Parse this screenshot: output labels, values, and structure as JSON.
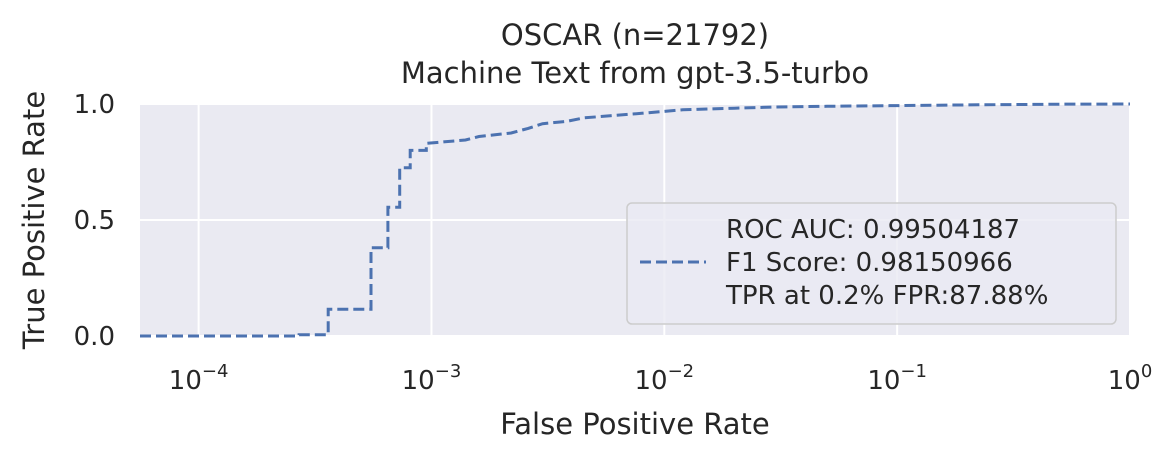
{
  "chart_data": {
    "type": "line",
    "title": "OSCAR (n=21792)",
    "subtitle": "Machine Text from gpt-3.5-turbo",
    "xlabel": "False Positive Rate",
    "ylabel": "True Positive Rate",
    "xscale": "log",
    "xlim": [
      5.6e-05,
      1.0
    ],
    "ylim": [
      0.0,
      1.0
    ],
    "grid": true,
    "legend_position": "lower-right",
    "x_ticks": [
      {
        "value": 0.0001,
        "base": "10",
        "exp": "−4"
      },
      {
        "value": 0.001,
        "base": "10",
        "exp": "−3"
      },
      {
        "value": 0.01,
        "base": "10",
        "exp": "−2"
      },
      {
        "value": 0.1,
        "base": "10",
        "exp": "−1"
      },
      {
        "value": 1,
        "base": "10",
        "exp": "0"
      }
    ],
    "y_ticks": [
      {
        "value": 0.0,
        "label": "0.0"
      },
      {
        "value": 0.5,
        "label": "0.5"
      },
      {
        "value": 1.0,
        "label": "1.0"
      }
    ],
    "series": [
      {
        "color": "#4c72b0",
        "linestyle": "dashed",
        "legend_lines": [
          "ROC AUC: 0.99504187",
          "F1 Score: 0.98150966",
          "TPR at 0.2% FPR:87.88%"
        ],
        "points": [
          [
            5.6e-05,
            0.0
          ],
          [
            0.00027,
            0.0
          ],
          [
            0.00027,
            0.005
          ],
          [
            0.00036,
            0.005
          ],
          [
            0.00036,
            0.115
          ],
          [
            0.00055,
            0.115
          ],
          [
            0.00055,
            0.38
          ],
          [
            0.00065,
            0.38
          ],
          [
            0.00065,
            0.555
          ],
          [
            0.00073,
            0.555
          ],
          [
            0.00073,
            0.725
          ],
          [
            0.00081,
            0.725
          ],
          [
            0.00081,
            0.8
          ],
          [
            0.00095,
            0.8
          ],
          [
            0.00095,
            0.83
          ],
          [
            0.0014,
            0.845
          ],
          [
            0.0016,
            0.86
          ],
          [
            0.0022,
            0.875
          ],
          [
            0.0026,
            0.895
          ],
          [
            0.003,
            0.915
          ],
          [
            0.0038,
            0.925
          ],
          [
            0.0045,
            0.94
          ],
          [
            0.006,
            0.95
          ],
          [
            0.008,
            0.96
          ],
          [
            0.012,
            0.975
          ],
          [
            0.02,
            0.982
          ],
          [
            0.03,
            0.987
          ],
          [
            0.05,
            0.99
          ],
          [
            0.1,
            0.993
          ],
          [
            0.2,
            0.996
          ],
          [
            0.5,
            0.999
          ],
          [
            1.0,
            1.0
          ]
        ]
      }
    ]
  }
}
